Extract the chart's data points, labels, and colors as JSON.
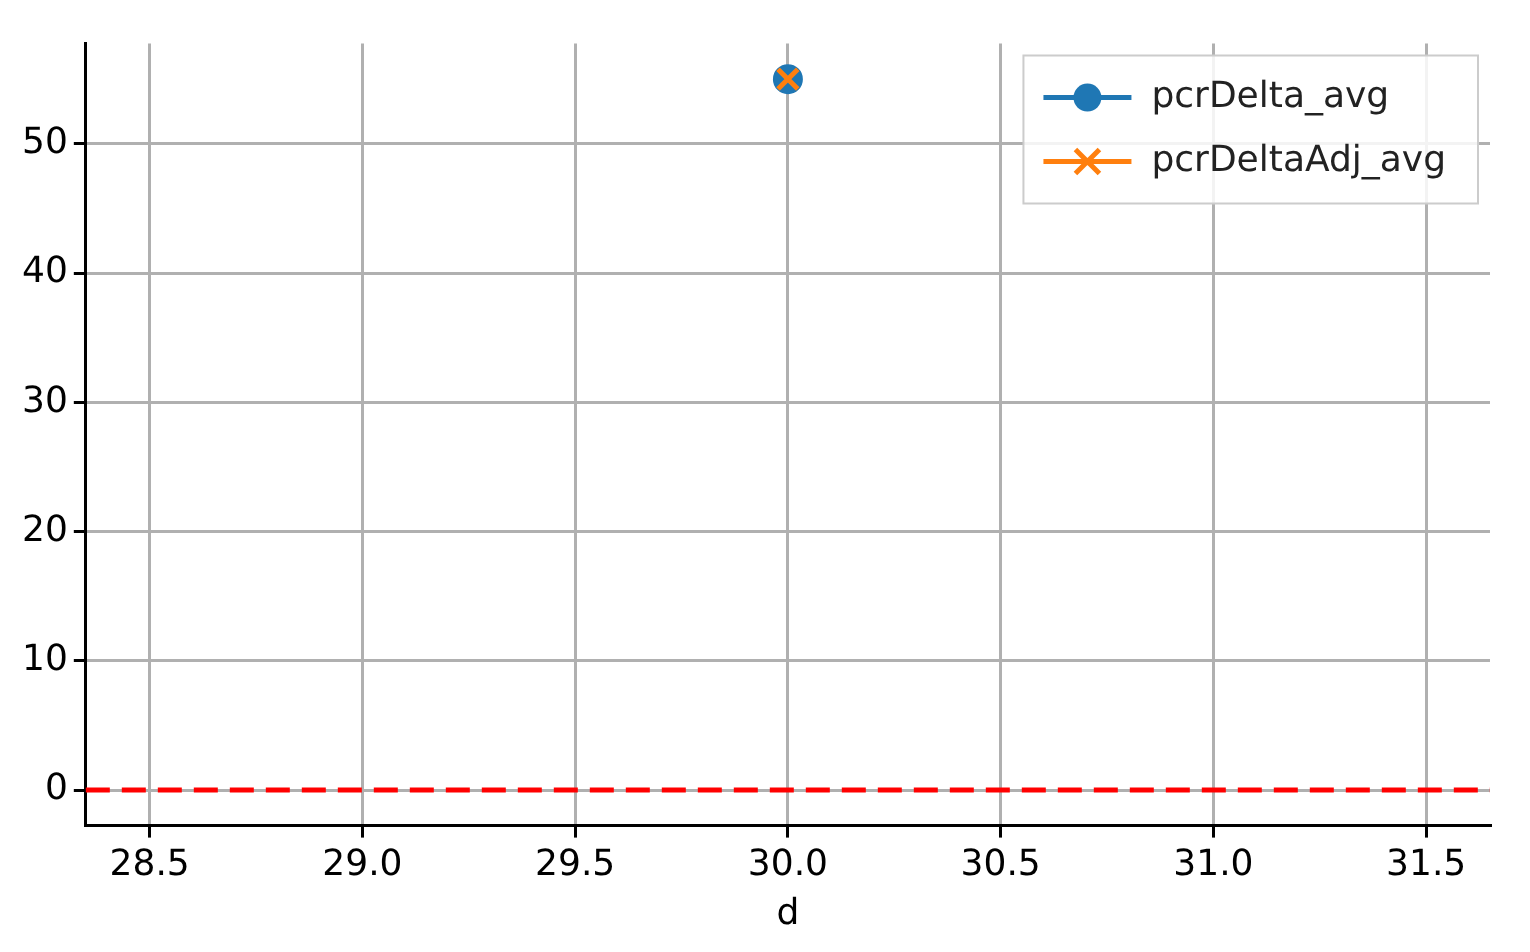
{
  "chart_data": {
    "type": "line",
    "xlabel": "d",
    "x": [
      30
    ],
    "series": [
      {
        "name": "pcrDelta_avg",
        "color": "#1f77b4",
        "values": [
          55
        ],
        "marker": "circle"
      },
      {
        "name": "pcrDeltaAdj_avg",
        "color": "#ff7f0e",
        "values": [
          55
        ],
        "marker": "cross"
      }
    ],
    "xlim": [
      28.35,
      31.65
    ],
    "xticks": [
      {
        "value": 28.5,
        "label": "28.5"
      },
      {
        "value": 29,
        "label": "29.0"
      },
      {
        "value": 29.5,
        "label": "29.5"
      },
      {
        "value": 30,
        "label": "30.0"
      },
      {
        "value": 30.5,
        "label": "30.5"
      },
      {
        "value": 31,
        "label": "31.0"
      },
      {
        "value": 31.5,
        "label": "31.5"
      }
    ],
    "ylim": [
      -2.75,
      57.75
    ],
    "yticks": [
      0,
      10,
      20,
      30,
      40,
      50
    ],
    "ref_lines": [
      {
        "axis": "y",
        "value": 0,
        "color": "#ff0000",
        "line_style": "dashed"
      }
    ],
    "grid": true,
    "legend": "top right"
  }
}
